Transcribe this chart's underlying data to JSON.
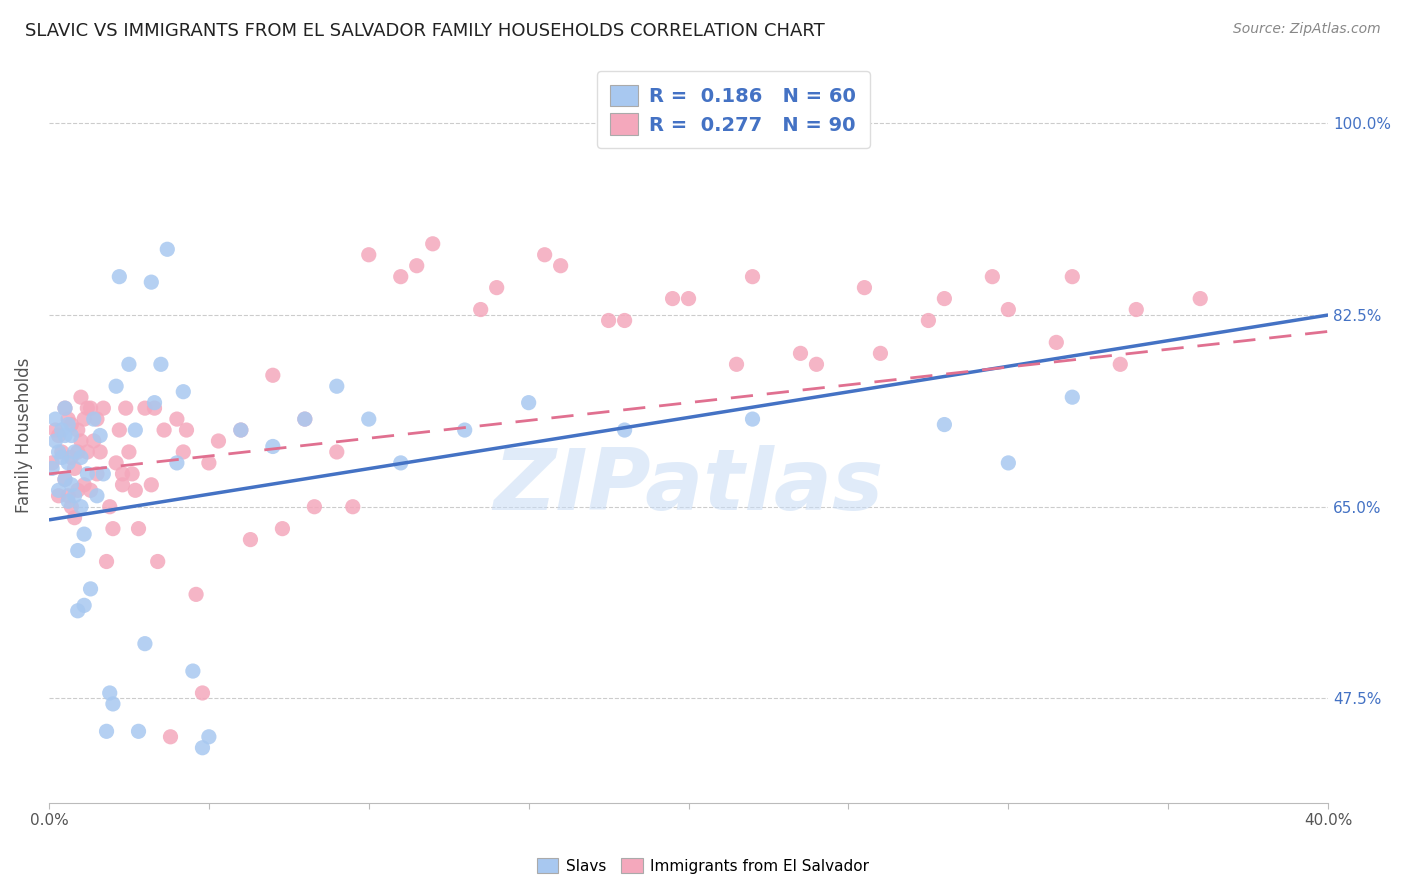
{
  "title": "SLAVIC VS IMMIGRANTS FROM EL SALVADOR FAMILY HOUSEHOLDS CORRELATION CHART",
  "source": "Source: ZipAtlas.com",
  "ylabel": "Family Households",
  "ytick_labels": [
    "100.0%",
    "82.5%",
    "65.0%",
    "47.5%"
  ],
  "ytick_values": [
    1.0,
    0.825,
    0.65,
    0.475
  ],
  "xlim": [
    0.0,
    0.4
  ],
  "ylim": [
    0.38,
    1.05
  ],
  "watermark": "ZIPatlas",
  "blue_color": "#A8C8F0",
  "pink_color": "#F4A8BC",
  "blue_line_color": "#4472C4",
  "pink_line_color": "#E07090",
  "label_slavs": "Slavs",
  "label_immigrants": "Immigrants from El Salvador",
  "blue_line_x0": 0.0,
  "blue_line_y0": 0.638,
  "blue_line_x1": 0.4,
  "blue_line_y1": 0.825,
  "pink_line_x0": 0.0,
  "pink_line_y0": 0.68,
  "pink_line_x1": 0.4,
  "pink_line_y1": 0.81,
  "slavs_x": [
    0.001,
    0.002,
    0.002,
    0.003,
    0.003,
    0.004,
    0.004,
    0.005,
    0.005,
    0.005,
    0.006,
    0.006,
    0.006,
    0.007,
    0.007,
    0.008,
    0.008,
    0.009,
    0.009,
    0.01,
    0.01,
    0.011,
    0.011,
    0.012,
    0.013,
    0.014,
    0.015,
    0.016,
    0.017,
    0.018,
    0.019,
    0.02,
    0.021,
    0.022,
    0.025,
    0.027,
    0.028,
    0.03,
    0.032,
    0.033,
    0.035,
    0.037,
    0.04,
    0.042,
    0.045,
    0.048,
    0.05,
    0.06,
    0.07,
    0.08,
    0.09,
    0.1,
    0.11,
    0.13,
    0.15,
    0.18,
    0.22,
    0.28,
    0.3,
    0.32
  ],
  "slavs_y": [
    0.685,
    0.71,
    0.73,
    0.7,
    0.665,
    0.695,
    0.72,
    0.675,
    0.715,
    0.74,
    0.655,
    0.69,
    0.725,
    0.67,
    0.715,
    0.66,
    0.7,
    0.555,
    0.61,
    0.65,
    0.695,
    0.56,
    0.625,
    0.68,
    0.575,
    0.73,
    0.66,
    0.715,
    0.68,
    0.445,
    0.48,
    0.47,
    0.76,
    0.86,
    0.78,
    0.72,
    0.445,
    0.525,
    0.855,
    0.745,
    0.78,
    0.885,
    0.69,
    0.755,
    0.5,
    0.43,
    0.44,
    0.72,
    0.705,
    0.73,
    0.76,
    0.73,
    0.69,
    0.72,
    0.745,
    0.72,
    0.73,
    0.725,
    0.69,
    0.75
  ],
  "immigrants_x": [
    0.001,
    0.002,
    0.003,
    0.003,
    0.004,
    0.005,
    0.005,
    0.006,
    0.006,
    0.007,
    0.007,
    0.007,
    0.008,
    0.008,
    0.009,
    0.009,
    0.009,
    0.01,
    0.01,
    0.011,
    0.011,
    0.012,
    0.012,
    0.013,
    0.014,
    0.015,
    0.015,
    0.016,
    0.017,
    0.018,
    0.019,
    0.02,
    0.021,
    0.022,
    0.023,
    0.024,
    0.025,
    0.026,
    0.027,
    0.028,
    0.03,
    0.032,
    0.034,
    0.036,
    0.04,
    0.042,
    0.046,
    0.05,
    0.06,
    0.07,
    0.08,
    0.09,
    0.1,
    0.11,
    0.12,
    0.14,
    0.16,
    0.18,
    0.2,
    0.22,
    0.24,
    0.26,
    0.28,
    0.3,
    0.32,
    0.34,
    0.36,
    0.095,
    0.115,
    0.135,
    0.155,
    0.175,
    0.195,
    0.215,
    0.235,
    0.255,
    0.275,
    0.295,
    0.315,
    0.335,
    0.013,
    0.023,
    0.033,
    0.043,
    0.053,
    0.063,
    0.073,
    0.083,
    0.038,
    0.048
  ],
  "immigrants_y": [
    0.69,
    0.72,
    0.66,
    0.715,
    0.7,
    0.675,
    0.74,
    0.66,
    0.73,
    0.65,
    0.695,
    0.725,
    0.64,
    0.685,
    0.72,
    0.665,
    0.7,
    0.75,
    0.71,
    0.73,
    0.67,
    0.7,
    0.74,
    0.665,
    0.71,
    0.73,
    0.68,
    0.7,
    0.74,
    0.6,
    0.65,
    0.63,
    0.69,
    0.72,
    0.67,
    0.74,
    0.7,
    0.68,
    0.665,
    0.63,
    0.74,
    0.67,
    0.6,
    0.72,
    0.73,
    0.7,
    0.57,
    0.69,
    0.72,
    0.77,
    0.73,
    0.7,
    0.88,
    0.86,
    0.89,
    0.85,
    0.87,
    0.82,
    0.84,
    0.86,
    0.78,
    0.79,
    0.84,
    0.83,
    0.86,
    0.83,
    0.84,
    0.65,
    0.87,
    0.83,
    0.88,
    0.82,
    0.84,
    0.78,
    0.79,
    0.85,
    0.82,
    0.86,
    0.8,
    0.78,
    0.74,
    0.68,
    0.74,
    0.72,
    0.71,
    0.62,
    0.63,
    0.65,
    0.44,
    0.48
  ]
}
